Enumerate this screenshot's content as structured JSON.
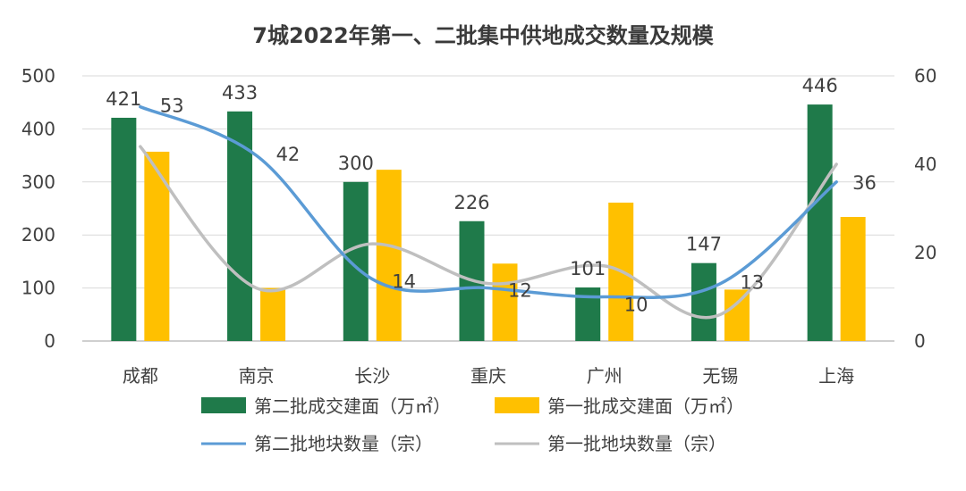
{
  "chart_data": {
    "type": "bar",
    "title": "7城2022年第一、二批集中供地成交数量及规模",
    "categories": [
      "成都",
      "南京",
      "长沙",
      "重庆",
      "广州",
      "无锡",
      "上海"
    ],
    "left_axis": {
      "min": 0,
      "max": 500,
      "ticks": [
        0,
        100,
        200,
        300,
        400,
        500
      ]
    },
    "right_axis": {
      "min": 0,
      "max": 60,
      "ticks": [
        0,
        20,
        40,
        60
      ]
    },
    "series": [
      {
        "name": "第二批成交建面（万㎡）",
        "type": "bar",
        "axis": "left",
        "color": "#1f7a4a",
        "values": [
          421,
          433,
          300,
          226,
          101,
          147,
          446
        ],
        "labels": [
          "421",
          "433",
          "300",
          "226",
          "101",
          "147",
          "446"
        ]
      },
      {
        "name": "第一批成交建面（万㎡）",
        "type": "bar",
        "axis": "left",
        "color": "#ffc000",
        "values": [
          357,
          100,
          323,
          146,
          261,
          97,
          234
        ]
      },
      {
        "name": "第二批地块数量（宗）",
        "type": "line",
        "axis": "right",
        "color": "#5b9bd5",
        "values": [
          53,
          42,
          14,
          12,
          10,
          13,
          36
        ],
        "labels": [
          "53",
          "42",
          "14",
          "12",
          "10",
          "13",
          "36"
        ]
      },
      {
        "name": "第一批地块数量（宗）",
        "type": "line",
        "axis": "right",
        "color": "#bfbfbf",
        "values": [
          44,
          12,
          22,
          13,
          17,
          6,
          40
        ]
      }
    ]
  }
}
